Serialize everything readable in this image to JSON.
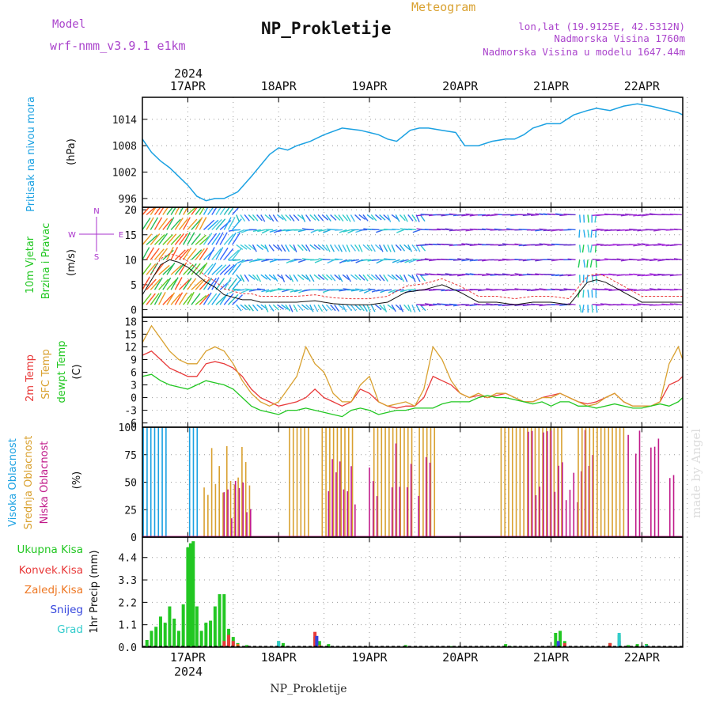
{
  "header": {
    "model_label": "Model",
    "model_value": "wrf-nmm_v3.9.1 e1km",
    "meteogram_label": "Meteogram",
    "title": "NP_Prokletije",
    "location": "lon,lat (19.9125E, 42.5312N)",
    "elevation": "Nadmorska Visina 1760m",
    "model_elevation": "Nadmorska Visina u modelu 1647.44m",
    "year": "2024",
    "footer_title": "NP_Prokletije",
    "credit": "made by Angel"
  },
  "colors": {
    "pressure": "#1ba1e2",
    "wind_label": "#22c722",
    "wind_dir": "#aa33cc",
    "temp2m": "#e83a3a",
    "sfc": "#d9a130",
    "dewpt": "#22c722",
    "high_cloud": "#1ba1e2",
    "mid_cloud": "#d9a130",
    "low_cloud": "#c01a8a",
    "precip_total": "#22c722",
    "precip_conv": "#e83a3a",
    "precip_frz": "#ee7722",
    "snow": "#3344dd",
    "grad": "#33cccc",
    "model": "#aa44cc",
    "meteogram": "#d9a130"
  },
  "time_axis": {
    "day_labels": [
      "17APR",
      "18APR",
      "19APR",
      "20APR",
      "21APR",
      "22APR"
    ],
    "year_label": "2024",
    "range_days": [
      -0.5,
      5.45
    ]
  },
  "chart_data": [
    {
      "type": "line",
      "name": "pressure",
      "ylabel": "Pritisak na nivou mora",
      "units": "(hPa)",
      "yticks": [
        996,
        1002,
        1008,
        1014
      ],
      "ylim": [
        994,
        1019
      ],
      "grid": true,
      "x": [
        -0.5,
        -0.4,
        -0.3,
        -0.2,
        -0.1,
        0,
        0.1,
        0.2,
        0.3,
        0.4,
        0.55,
        0.7,
        0.9,
        1.0,
        1.1,
        1.2,
        1.35,
        1.5,
        1.7,
        1.9,
        2.0,
        2.1,
        2.2,
        2.3,
        2.45,
        2.55,
        2.65,
        2.8,
        2.95,
        3.05,
        3.2,
        3.35,
        3.5,
        3.6,
        3.7,
        3.8,
        3.95,
        4.1,
        4.25,
        4.4,
        4.5,
        4.65,
        4.8,
        4.95,
        5.1,
        5.2,
        5.3,
        5.4,
        5.45
      ],
      "values": [
        1009.5,
        1006.5,
        1004.5,
        1003,
        1001,
        999,
        996.5,
        995.5,
        996,
        996,
        997.5,
        1001,
        1006,
        1007.5,
        1007,
        1008,
        1009,
        1010.5,
        1012,
        1011.5,
        1011,
        1010.5,
        1009.5,
        1009,
        1011.5,
        1012,
        1012,
        1011.5,
        1011,
        1008,
        1008,
        1009,
        1009.5,
        1009.5,
        1010.5,
        1012,
        1013,
        1013,
        1015,
        1016,
        1016.5,
        1016,
        1017,
        1017.5,
        1017,
        1016.5,
        1016,
        1015.5,
        1015
      ]
    },
    {
      "type": "line",
      "name": "wind",
      "ylabel": "10m Vjetar Brzina i Pravac",
      "units": "(m/s)",
      "yticks": [
        0,
        5,
        10,
        15,
        20
      ],
      "ylim": [
        -1.5,
        20.5
      ],
      "grid": true,
      "direction_legend": [
        "N",
        "W",
        "E",
        "S"
      ],
      "x": [
        -0.5,
        -0.4,
        -0.3,
        -0.2,
        -0.1,
        0,
        0.1,
        0.2,
        0.3,
        0.4,
        0.5,
        0.6,
        0.7,
        0.8,
        0.9,
        1.0,
        1.2,
        1.4,
        1.6,
        1.8,
        2.0,
        2.2,
        2.4,
        2.6,
        2.8,
        3.0,
        3.2,
        3.4,
        3.6,
        3.8,
        4.0,
        4.2,
        4.4,
        4.5,
        4.6,
        4.8,
        5.0,
        5.2,
        5.45
      ],
      "values": [
        3,
        6,
        9,
        10,
        9.5,
        8.5,
        7,
        5.5,
        4.5,
        3,
        2.5,
        2,
        2,
        1.5,
        1.5,
        1.5,
        1.5,
        1.8,
        1.2,
        1,
        1,
        1.5,
        3.5,
        4,
        5,
        3.5,
        1.5,
        1.5,
        1,
        1.5,
        1.5,
        1,
        5.5,
        6,
        5.5,
        3.5,
        1.5,
        1.5,
        1.5
      ]
    },
    {
      "type": "line",
      "name": "temperature",
      "ylabel": "2m Temp / SFC Temp / dewpt Temp",
      "units": "(C)",
      "yticks": [
        -6,
        -3,
        0,
        3,
        6,
        9,
        12,
        15,
        18
      ],
      "ylim": [
        -7,
        19
      ],
      "grid": true,
      "x": [
        -0.5,
        -0.4,
        -0.3,
        -0.2,
        -0.1,
        0,
        0.1,
        0.2,
        0.3,
        0.4,
        0.5,
        0.6,
        0.7,
        0.8,
        0.9,
        1.0,
        1.1,
        1.2,
        1.3,
        1.4,
        1.5,
        1.6,
        1.7,
        1.8,
        1.9,
        2.0,
        2.1,
        2.2,
        2.3,
        2.4,
        2.5,
        2.6,
        2.7,
        2.8,
        2.9,
        3.0,
        3.1,
        3.2,
        3.3,
        3.4,
        3.5,
        3.6,
        3.7,
        3.8,
        3.9,
        4.0,
        4.1,
        4.2,
        4.3,
        4.4,
        4.5,
        4.6,
        4.7,
        4.8,
        4.9,
        5.0,
        5.1,
        5.2,
        5.3,
        5.4,
        5.45
      ],
      "series": [
        {
          "name": "2m Temp",
          "color": "#e83a3a",
          "values": [
            10,
            11,
            9,
            7,
            6,
            5,
            5,
            8,
            8.5,
            8,
            7,
            5,
            2,
            0,
            -1,
            -2,
            -1.5,
            -1,
            0,
            2,
            0,
            -1,
            -2,
            -1,
            2,
            1,
            -1,
            -2,
            -2.5,
            -2,
            -2,
            0,
            5,
            4,
            3,
            1,
            0,
            0.5,
            0,
            0.5,
            1,
            0,
            -1,
            -1,
            0,
            0.5,
            1,
            0,
            -1,
            -1.5,
            -1,
            0,
            1,
            -1,
            -2,
            -2,
            -2,
            -1,
            3,
            4,
            5
          ]
        },
        {
          "name": "SFC Temp",
          "color": "#d9a130",
          "values": [
            13,
            17,
            14,
            11,
            9,
            8,
            8,
            11,
            12,
            11,
            8,
            4,
            1,
            -1,
            -2,
            -1,
            2,
            5,
            12,
            8,
            6,
            1,
            -1,
            -1,
            3,
            5,
            -1,
            -2,
            -1.5,
            -1,
            -2,
            2,
            12,
            9,
            4,
            1,
            0,
            1,
            0,
            1,
            1,
            0,
            -1,
            -1,
            0,
            0,
            1,
            0,
            -1,
            -2,
            -1.5,
            0,
            1,
            -1,
            -2,
            -2,
            -2,
            -1,
            8,
            12,
            9
          ]
        },
        {
          "name": "dewpt Temp",
          "color": "#22c722",
          "values": [
            5,
            5.5,
            4,
            3,
            2.5,
            2,
            3,
            4,
            3.5,
            3,
            2,
            0,
            -2,
            -3,
            -3.5,
            -4,
            -3,
            -3,
            -2.5,
            -3,
            -3.5,
            -4,
            -4.5,
            -3,
            -2.5,
            -3,
            -4,
            -3.5,
            -3,
            -3,
            -2.5,
            -2.5,
            -2.5,
            -1.5,
            -1,
            -1,
            -1,
            0,
            0.5,
            0,
            0,
            -0.5,
            -1,
            -1.5,
            -1,
            -2,
            -1,
            -1,
            -2,
            -2,
            -2.5,
            -2,
            -1.5,
            -2,
            -2.5,
            -2.5,
            -2,
            -1.5,
            -2,
            -1,
            0
          ]
        }
      ]
    },
    {
      "type": "bar",
      "name": "clouds",
      "ylabel": "Visoka Oblacnost / Srednja Oblacnost / Niska Oblacnost",
      "units": "(%)",
      "yticks": [
        0,
        25,
        50,
        75,
        100
      ],
      "ylim": [
        0,
        100
      ],
      "grid": true,
      "segments": [
        {
          "series": "Visoka Oblacnost",
          "start": -0.49,
          "end": -0.2,
          "pattern": "full",
          "value": 100
        },
        {
          "series": "Visoka Oblacnost",
          "start": 0.02,
          "end": 0.12,
          "pattern": "full",
          "value": 100
        },
        {
          "series": "Srednja Oblacnost",
          "start": 0.18,
          "end": 0.7,
          "pattern": "mixed",
          "value": 85
        },
        {
          "series": "Niska Oblacnost",
          "start": 0.4,
          "end": 0.72,
          "pattern": "mixed",
          "value": 55
        },
        {
          "series": "Srednja Oblacnost",
          "start": 1.12,
          "end": 1.35,
          "pattern": "full",
          "value": 100
        },
        {
          "series": "Srednja Oblacnost",
          "start": 1.48,
          "end": 1.82,
          "pattern": "full",
          "value": 100
        },
        {
          "series": "Niska Oblacnost",
          "start": 1.55,
          "end": 1.85,
          "pattern": "mixed",
          "value": 80
        },
        {
          "series": "Srednja Oblacnost",
          "start": 2.05,
          "end": 2.5,
          "pattern": "full",
          "value": 100
        },
        {
          "series": "Srednja Oblacnost",
          "start": 2.55,
          "end": 2.75,
          "pattern": "full",
          "value": 100
        },
        {
          "series": "Niska Oblacnost",
          "start": 2.0,
          "end": 2.7,
          "pattern": "sparse",
          "value": 90
        },
        {
          "series": "Srednja Oblacnost",
          "start": 3.45,
          "end": 4.15,
          "pattern": "full",
          "value": 100
        },
        {
          "series": "Niska Oblacnost",
          "start": 3.75,
          "end": 4.5,
          "pattern": "mixed",
          "value": 100
        },
        {
          "series": "Srednja Oblacnost",
          "start": 4.3,
          "end": 4.82,
          "pattern": "full",
          "value": 100
        },
        {
          "series": "Niska Oblacnost",
          "start": 4.85,
          "end": 5.45,
          "pattern": "sparse",
          "value": 100
        }
      ]
    },
    {
      "type": "bar",
      "name": "precipitation",
      "ylabel": "1hr Precip",
      "units": "(mm)",
      "yticks": [
        0,
        1.1,
        2.2,
        3.3,
        4.4
      ],
      "ylim": [
        0,
        5.4
      ],
      "grid": true,
      "legend": [
        "Ukupna Kisa",
        "Konvek.Kisa",
        "Zaledj.Kisa",
        "Snijeg",
        "Grad"
      ],
      "total": [
        [
          -0.45,
          0.35
        ],
        [
          -0.4,
          0.8
        ],
        [
          -0.35,
          1.0
        ],
        [
          -0.3,
          1.5
        ],
        [
          -0.25,
          1.2
        ],
        [
          -0.2,
          2.0
        ],
        [
          -0.15,
          1.4
        ],
        [
          -0.1,
          0.8
        ],
        [
          -0.05,
          2.1
        ],
        [
          0,
          4.9
        ],
        [
          0.03,
          5.1
        ],
        [
          0.06,
          5.2
        ],
        [
          0.1,
          2.0
        ],
        [
          0.15,
          0.8
        ],
        [
          0.2,
          1.2
        ],
        [
          0.25,
          1.3
        ],
        [
          0.3,
          2.0
        ],
        [
          0.35,
          2.6
        ],
        [
          0.4,
          2.6
        ],
        [
          0.45,
          0.9
        ],
        [
          0.5,
          0.5
        ],
        [
          0.55,
          0.2
        ],
        [
          0.65,
          0.1
        ],
        [
          1.0,
          0.3
        ],
        [
          1.05,
          0.2
        ],
        [
          1.4,
          0.5
        ],
        [
          1.45,
          0.3
        ],
        [
          1.55,
          0.15
        ],
        [
          2.4,
          0.1
        ],
        [
          2.9,
          0.05
        ],
        [
          3.5,
          0.15
        ],
        [
          3.55,
          0.05
        ],
        [
          4.05,
          0.7
        ],
        [
          4.1,
          0.8
        ],
        [
          4.15,
          0.3
        ],
        [
          4.65,
          0.2
        ],
        [
          4.75,
          0.6
        ],
        [
          4.85,
          0.1
        ],
        [
          4.95,
          0.15
        ],
        [
          5.05,
          0.15
        ]
      ],
      "convective": [
        [
          0.4,
          0.3
        ],
        [
          0.45,
          0.6
        ],
        [
          0.5,
          0.3
        ],
        [
          1.4,
          0.75
        ],
        [
          4.15,
          0.2
        ],
        [
          4.65,
          0.2
        ]
      ],
      "freezing": [
        [
          0.55,
          0.15
        ],
        [
          1.45,
          0.1
        ]
      ],
      "snow": [
        [
          1.42,
          0.55
        ],
        [
          4.08,
          0.3
        ],
        [
          4.75,
          0.3
        ]
      ],
      "grad": [
        [
          1.0,
          0.3
        ],
        [
          4.75,
          0.7
        ],
        [
          5.05,
          0.1
        ]
      ]
    }
  ]
}
